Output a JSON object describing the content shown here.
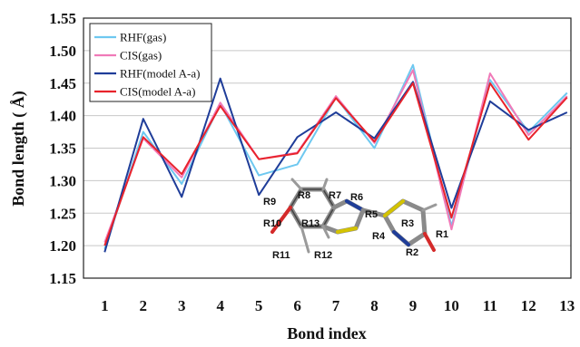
{
  "chart_data": {
    "type": "line",
    "xlabel": "Bond index",
    "ylabel": "Bond length ( Å)",
    "x": [
      1,
      2,
      3,
      4,
      5,
      6,
      7,
      8,
      9,
      10,
      11,
      12,
      13
    ],
    "xlim": [
      0.45,
      13.1
    ],
    "ylim": [
      1.15,
      1.55
    ],
    "yticks": [
      "1.15",
      "1.20",
      "1.25",
      "1.30",
      "1.35",
      "1.40",
      "1.45",
      "1.50",
      "1.55"
    ],
    "grid": true,
    "legend_position": "top-left",
    "series": [
      {
        "name": "RHF(gas)",
        "color": "#6ec8f0",
        "values": [
          1.195,
          1.375,
          1.295,
          1.418,
          1.308,
          1.325,
          1.428,
          1.35,
          1.478,
          1.23,
          1.455,
          1.375,
          1.435
        ]
      },
      {
        "name": "CIS(gas)",
        "color": "#f07ab8",
        "values": [
          1.205,
          1.365,
          1.305,
          1.42,
          1.333,
          1.343,
          1.43,
          1.358,
          1.47,
          1.225,
          1.465,
          1.37,
          1.43
        ]
      },
      {
        "name": "RHF(model A-a)",
        "color": "#1f3d99",
        "values": [
          1.19,
          1.395,
          1.275,
          1.457,
          1.278,
          1.367,
          1.405,
          1.365,
          1.452,
          1.258,
          1.422,
          1.378,
          1.405
        ]
      },
      {
        "name": "CIS(model A-a)",
        "color": "#e8232b",
        "values": [
          1.2,
          1.367,
          1.31,
          1.415,
          1.333,
          1.342,
          1.427,
          1.36,
          1.45,
          1.243,
          1.45,
          1.363,
          1.428
        ]
      }
    ],
    "molecule_labels": [
      "R1",
      "R2",
      "R3",
      "R4",
      "R5",
      "R6",
      "R7",
      "R8",
      "R9",
      "R10",
      "R11",
      "R12",
      "R13"
    ]
  }
}
